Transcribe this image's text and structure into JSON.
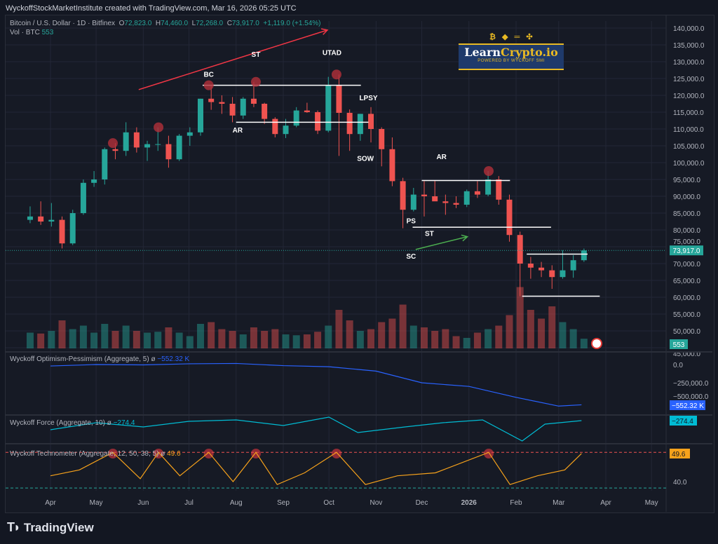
{
  "header": {
    "attribution": "WyckoffStockMarketInstitute created with TradingView.com, Mar 16, 2026 05:25 UTC"
  },
  "legend": {
    "symbol": "Bitcoin / U.S. Dollar · 1D · Bitfinex",
    "o_label": "O",
    "o": "72,823.0",
    "h_label": "H",
    "h": "74,460.0",
    "l_label": "L",
    "l": "72,268.0",
    "c_label": "C",
    "c": "73,917.0",
    "change": "+1,119.0 (+1.54%)",
    "vol_label": "Vol · BTC",
    "vol": "553"
  },
  "indicators": {
    "op": {
      "label": "Wyckoff Optimism-Pessimism (Aggregate, 5)",
      "value": "−552.32 K",
      "color": "#2962ff"
    },
    "force": {
      "label": "Wyckoff Force (Aggregate, 10)",
      "value": "−274.4",
      "color": "#00bcd4"
    },
    "techno": {
      "label": "Wyckoff Technometer (Aggregate, 12, 50, 38, 5)",
      "value": "49.6",
      "color": "#f7a21b"
    },
    "hidden_icon": "eye-slash-icon"
  },
  "logo": {
    "text_a": "Learn",
    "text_b": "Crypto.io",
    "tagline": "POWERED BY WYCKOFF SMI"
  },
  "footer": {
    "brand": "TradingView"
  },
  "colors": {
    "up": "#26a69a",
    "down": "#ef5350",
    "background": "#161a25",
    "annotation_line": "#ffffff",
    "arrow_red": "#f23645",
    "arrow_green": "#4caf50",
    "marker": "#b2303a"
  },
  "chart_data": {
    "type": "candlestick",
    "title": "Bitcoin / U.S. Dollar · 1D · Bitfinex",
    "price_axis": {
      "ticks": [
        45000,
        50000,
        55000,
        60000,
        65000,
        70000,
        75000,
        80000,
        85000,
        90000,
        95000,
        100000,
        105000,
        110000,
        115000,
        120000,
        125000,
        130000,
        135000,
        140000
      ],
      "labels": [
        "45,000.0",
        "50,000.0",
        "55,000.0",
        "60,000.0",
        "65,000.0",
        "70,000.0",
        "75,000.0",
        "80,000.0",
        "85,000.0",
        "90,000.0",
        "95,000.0",
        "100,000.0",
        "105,000.0",
        "110,000.0",
        "115,000.0",
        "120,000.0",
        "125,000.0",
        "130,000.0",
        "135,000.0",
        "140,000.0"
      ],
      "last_price": 73917,
      "last_label": "73,917.0",
      "ylim": [
        45000,
        140000
      ]
    },
    "time_axis": {
      "ticks": [
        "2025-04-01",
        "2025-05-01",
        "2025-06-01",
        "2025-07-01",
        "2025-08-01",
        "2025-09-01",
        "2025-10-01",
        "2025-11-01",
        "2025-12-01",
        "2026-01-01",
        "2026-02-01",
        "2026-03-01",
        "2026-04-01",
        "2026-05-01"
      ],
      "labels": [
        "Apr",
        "May",
        "Jun",
        "Jul",
        "Aug",
        "Sep",
        "Oct",
        "Nov",
        "Dec",
        "2026",
        "Feb",
        "Mar",
        "Apr",
        "May"
      ]
    },
    "candles_weekly": [
      [
        "2025-03-17",
        83000,
        87000,
        82000,
        84000,
        900
      ],
      [
        "2025-03-24",
        84000,
        88500,
        81500,
        82500,
        850
      ],
      [
        "2025-03-31",
        82500,
        88000,
        81000,
        83000,
        1000
      ],
      [
        "2025-04-07",
        83000,
        84000,
        74500,
        76000,
        1600
      ],
      [
        "2025-04-14",
        76000,
        86000,
        75500,
        85000,
        1100
      ],
      [
        "2025-04-21",
        85000,
        95000,
        84500,
        94000,
        1300
      ],
      [
        "2025-04-28",
        94000,
        97500,
        92800,
        95000,
        900
      ],
      [
        "2025-05-05",
        95000,
        104500,
        93500,
        104000,
        1400
      ],
      [
        "2025-05-12",
        104000,
        105800,
        101000,
        103500,
        1000
      ],
      [
        "2025-05-19",
        103500,
        112000,
        102000,
        109000,
        1300
      ],
      [
        "2025-05-26",
        109000,
        110500,
        103000,
        104500,
        1000
      ],
      [
        "2025-06-02",
        104500,
        106500,
        100500,
        105500,
        900
      ],
      [
        "2025-06-09",
        105500,
        110500,
        103500,
        105500,
        950
      ],
      [
        "2025-06-16",
        105500,
        108000,
        98500,
        101000,
        1200
      ],
      [
        "2025-06-23",
        101000,
        108500,
        100500,
        108000,
        900
      ],
      [
        "2025-06-30",
        108000,
        110500,
        105000,
        109000,
        700
      ],
      [
        "2025-07-07",
        109000,
        119000,
        108000,
        119000,
        1400
      ],
      [
        "2025-07-14",
        119000,
        123000,
        115700,
        118000,
        1500
      ],
      [
        "2025-07-21",
        118000,
        120000,
        114500,
        117500,
        1100
      ],
      [
        "2025-07-28",
        117500,
        119500,
        112000,
        114000,
        1000
      ],
      [
        "2025-08-04",
        114000,
        119500,
        113000,
        119000,
        800
      ],
      [
        "2025-08-11",
        119000,
        124000,
        116500,
        117500,
        1200
      ],
      [
        "2025-08-18",
        117500,
        117800,
        111500,
        113000,
        1000
      ],
      [
        "2025-08-25",
        113000,
        113500,
        107500,
        108500,
        1100
      ],
      [
        "2025-09-01",
        108500,
        113000,
        107300,
        111000,
        800
      ],
      [
        "2025-09-08",
        111000,
        116500,
        110500,
        115500,
        750
      ],
      [
        "2025-09-15",
        115500,
        117800,
        114800,
        115000,
        800
      ],
      [
        "2025-09-22",
        115000,
        115500,
        108500,
        109500,
        950
      ],
      [
        "2025-09-29",
        109500,
        125500,
        109000,
        123000,
        1300
      ],
      [
        "2025-10-06",
        123000,
        126200,
        102000,
        114800,
        2200
      ],
      [
        "2025-10-13",
        114800,
        115800,
        103500,
        108500,
        1600
      ],
      [
        "2025-10-20",
        108500,
        114500,
        106500,
        114500,
        1000
      ],
      [
        "2025-10-27",
        114500,
        116500,
        106000,
        110000,
        1100
      ],
      [
        "2025-11-03",
        110000,
        110500,
        98900,
        104000,
        1500
      ],
      [
        "2025-11-10",
        104000,
        107500,
        93000,
        94500,
        1700
      ],
      [
        "2025-11-17",
        94500,
        95500,
        80500,
        86000,
        2500
      ],
      [
        "2025-11-24",
        86000,
        92500,
        85500,
        90500,
        1300
      ],
      [
        "2025-12-01",
        90500,
        94500,
        84000,
        90000,
        1200
      ],
      [
        "2025-12-08",
        90000,
        94600,
        89500,
        88500,
        1000
      ],
      [
        "2025-12-15",
        88500,
        90500,
        84500,
        88000,
        1100
      ],
      [
        "2025-12-22",
        88000,
        90000,
        86500,
        87500,
        700
      ],
      [
        "2025-12-29",
        87500,
        92000,
        86800,
        91500,
        600
      ],
      [
        "2026-01-05",
        91500,
        94500,
        89500,
        90500,
        900
      ],
      [
        "2026-01-12",
        90500,
        97500,
        90000,
        95000,
        1100
      ],
      [
        "2026-01-19",
        95000,
        96000,
        87500,
        89000,
        1300
      ],
      [
        "2026-01-26",
        89000,
        90500,
        76500,
        78500,
        1900
      ],
      [
        "2026-02-02",
        78500,
        79500,
        60300,
        70000,
        3500
      ],
      [
        "2026-02-09",
        70000,
        72000,
        65500,
        68800,
        2200
      ],
      [
        "2026-02-16",
        68800,
        70500,
        66000,
        68000,
        1700
      ],
      [
        "2026-02-23",
        68000,
        69500,
        62500,
        66000,
        2400
      ],
      [
        "2026-03-02",
        66000,
        74000,
        65500,
        68000,
        1500
      ],
      [
        "2026-03-09",
        68000,
        72500,
        65800,
        71000,
        1100
      ],
      [
        "2026-03-16",
        71000,
        74460,
        70500,
        73917,
        553
      ]
    ],
    "annotations": [
      {
        "text": "BC",
        "date": "2025-07-14",
        "price": 125500
      },
      {
        "text": "ST",
        "date": "2025-08-14",
        "price": 131500
      },
      {
        "text": "UTAD",
        "date": "2025-10-03",
        "price": 132000
      },
      {
        "text": "LPSY",
        "date": "2025-10-27",
        "price": 118500
      },
      {
        "text": "AR",
        "date": "2025-08-02",
        "price": 109000
      },
      {
        "text": "SOW",
        "date": "2025-10-25",
        "price": 100500
      },
      {
        "text": "AR",
        "date": "2025-12-14",
        "price": 101000
      },
      {
        "text": "PS",
        "date": "2025-11-24",
        "price": 82000
      },
      {
        "text": "ST",
        "date": "2025-12-06",
        "price": 78200
      },
      {
        "text": "SC",
        "date": "2025-11-24",
        "price": 71500
      }
    ],
    "levels": [
      {
        "price": 123000,
        "from": "2025-07-10",
        "to": "2025-10-22"
      },
      {
        "price": 112000,
        "from": "2025-08-01",
        "to": "2025-10-27"
      },
      {
        "price": 94700,
        "from": "2025-12-01",
        "to": "2026-01-28"
      },
      {
        "price": 80800,
        "from": "2025-11-25",
        "to": "2026-02-24"
      },
      {
        "price": 72800,
        "from": "2026-02-08",
        "to": "2026-03-20"
      },
      {
        "price": 60300,
        "from": "2026-02-05",
        "to": "2026-03-28"
      }
    ],
    "arrows": [
      {
        "color": "red",
        "from": [
          "2025-05-29",
          121700
        ],
        "to": [
          "2025-09-30",
          139400
        ]
      },
      {
        "color": "green",
        "from": [
          "2025-11-27",
          74200
        ],
        "to": [
          "2025-12-31",
          78000
        ]
      }
    ],
    "markers": [
      "2025-05-12",
      "2025-06-11",
      "2025-07-14",
      "2025-08-14",
      "2025-10-06",
      "2026-01-14"
    ],
    "op_series": {
      "axis": [
        "0.0",
        "−250,000.0",
        "−500,000.0"
      ],
      "dates": [
        "2025-04-01",
        "2025-05-01",
        "2025-06-01",
        "2025-07-01",
        "2025-08-01",
        "2025-09-01",
        "2025-10-01",
        "2025-11-01",
        "2025-12-01",
        "2026-01-01",
        "2026-02-01",
        "2026-03-01",
        "2026-03-16"
      ],
      "values": [
        -20000,
        0,
        -5000,
        10000,
        15000,
        -15000,
        -30000,
        -90000,
        -250000,
        -300000,
        -450000,
        -570000,
        -552320
      ]
    },
    "force_series": {
      "dates": [
        "2025-04-01",
        "2025-05-01",
        "2025-06-01",
        "2025-07-01",
        "2025-08-01",
        "2025-09-01",
        "2025-10-01",
        "2025-10-20",
        "2025-11-20",
        "2025-12-15",
        "2026-01-10",
        "2026-02-05",
        "2026-02-20",
        "2026-03-16"
      ],
      "values": [
        -600,
        -350,
        -500,
        -300,
        -250,
        -450,
        -150,
        -700,
        -500,
        -350,
        -250,
        -1000,
        -400,
        -274.4
      ]
    },
    "techno_series": {
      "axis": [
        "40.0"
      ],
      "upper": 50,
      "lower": 37.8,
      "dates": [
        "2025-04-01",
        "2025-04-20",
        "2025-05-12",
        "2025-05-30",
        "2025-06-11",
        "2025-06-25",
        "2025-07-14",
        "2025-07-30",
        "2025-08-14",
        "2025-08-28",
        "2025-09-15",
        "2025-10-06",
        "2025-10-25",
        "2025-11-15",
        "2025-12-10",
        "2026-01-14",
        "2026-01-28",
        "2026-02-15",
        "2026-03-05",
        "2026-03-16"
      ],
      "values": [
        42,
        44,
        50,
        41,
        50,
        42,
        50,
        40,
        50,
        39,
        43,
        50,
        39,
        42,
        43,
        50,
        39,
        42,
        44,
        49.6
      ]
    }
  }
}
